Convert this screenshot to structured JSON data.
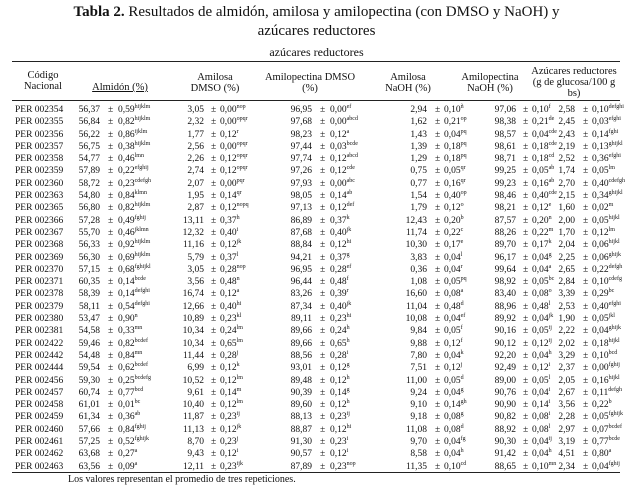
{
  "table": {
    "title_bold": "Tabla 2.",
    "title_rest": " Resultados de almidón, amilosa y amilopectina (con DMSO y NaOH) y",
    "title_line2": "azúcares reductores",
    "subtitle": "azúcares reductores",
    "headers": {
      "codigo_1": "Código",
      "codigo_2": "Nacional",
      "almidon": "Almidón (%)",
      "amilosa_dmso_1": "Amilosa",
      "amilosa_dmso_2": "DMSO (%)",
      "amilopectina_dmso_1": "Amilopectina DMSO",
      "amilopectina_dmso_2": "(%)",
      "amilosa_naoh_1": "Amilosa",
      "amilosa_naoh_2": "NaOH (%)",
      "amilopectina_naoh_1": "Amilopectina",
      "amilopectina_naoh_2": "NaOH (%)",
      "azucares_1": "Azúcares reductores",
      "azucares_2": "(g de glucosa/100 g",
      "azucares_3": "bs)"
    },
    "pm": "±",
    "rows": [
      {
        "code": "PER 002354",
        "alm": "56,37",
        "alm_sd": "0,59",
        "alm_sup": "hijklm",
        "ad": "3,05",
        "ad_sd": "0,00",
        "ad_sup": "nop",
        "apd": "96,95",
        "apd_sd": "0,00",
        "apd_sup": "ef",
        "an": "2,94",
        "an_sd": "0,10",
        "an_sup": "ñ",
        "apn": "97,06",
        "apn_sd": "0,10",
        "apn_sup": "f",
        "az": "2,58",
        "az_sd": "0,10",
        "az_sup": "defghi"
      },
      {
        "code": "PER 002355",
        "alm": "56,84",
        "alm_sd": "0,82",
        "alm_sup": "hijklm",
        "ad": "2,32",
        "ad_sd": "0,00",
        "ad_sup": "opqr",
        "apd": "97,68",
        "apd_sd": "0,00",
        "apd_sup": "abcd",
        "an": "1,62",
        "an_sd": "0,21",
        "an_sup": "op",
        "apn": "98,38",
        "apn_sd": "0,21",
        "apn_sup": "de",
        "az": "2,45",
        "az_sd": "0,03",
        "az_sup": "efghi"
      },
      {
        "code": "PER 002356",
        "alm": "56,22",
        "alm_sd": "0,86",
        "alm_sup": "ijklm",
        "ad": "1,77",
        "ad_sd": "0,12",
        "ad_sup": "r",
        "apd": "98,23",
        "apd_sd": "0,12",
        "apd_sup": "a",
        "an": "1,43",
        "an_sd": "0,04",
        "an_sup": "pq",
        "apn": "98,57",
        "apn_sd": "0,04",
        "apn_sup": "cde",
        "az": "2,43",
        "az_sd": "0,14",
        "az_sup": "fghi"
      },
      {
        "code": "PER 002357",
        "alm": "56,75",
        "alm_sd": "0,38",
        "alm_sup": "hijklm",
        "ad": "2,56",
        "ad_sd": "0,00",
        "ad_sup": "opqr",
        "apd": "97,44",
        "apd_sd": "0,03",
        "apd_sup": "bcde",
        "an": "1,39",
        "an_sd": "0,18",
        "an_sup": "pq",
        "apn": "98,61",
        "apn_sd": "0,18",
        "apn_sup": "cde",
        "az": "2,19",
        "az_sd": "0,13",
        "az_sup": "ghijkl"
      },
      {
        "code": "PER 002358",
        "alm": "54,77",
        "alm_sd": "0,46",
        "alm_sup": "lmn",
        "ad": "2,26",
        "ad_sd": "0,12",
        "ad_sup": "opqr",
        "apd": "97,74",
        "apd_sd": "0,12",
        "apd_sup": "abcd",
        "an": "1,29",
        "an_sd": "0,18",
        "an_sup": "pq",
        "apn": "98,71",
        "apn_sd": "0,18",
        "apn_sup": "cd",
        "az": "2,52",
        "az_sd": "0,36",
        "az_sup": "efghi"
      },
      {
        "code": "PER 002359",
        "alm": "57,89",
        "alm_sd": "0,22",
        "alm_sup": "efghij",
        "ad": "2,74",
        "ad_sd": "0,12",
        "ad_sup": "opqr",
        "apd": "97,26",
        "apd_sd": "0,12",
        "apd_sup": "cde",
        "an": "0,75",
        "an_sd": "0,05",
        "an_sup": "qr",
        "apn": "99,25",
        "apn_sd": "0,05",
        "apn_sup": "ab",
        "az": "1,74",
        "az_sd": "0,05",
        "az_sup": "lm"
      },
      {
        "code": "PER 002360",
        "alm": "58,72",
        "alm_sd": "0,23",
        "alm_sup": "cdefgh",
        "ad": "2,07",
        "ad_sd": "0,00",
        "ad_sup": "pqr",
        "apd": "97,93",
        "apd_sd": "0,00",
        "apd_sup": "abc",
        "an": "0,77",
        "an_sd": "0,16",
        "an_sup": "qr",
        "apn": "99,23",
        "apn_sd": "0,16",
        "apn_sup": "ab",
        "az": "2,70",
        "az_sd": "0,40",
        "az_sup": "cdefgh"
      },
      {
        "code": "PER 002363",
        "alm": "54,80",
        "alm_sd": "0,84",
        "alm_sup": "klmn",
        "ad": "1,95",
        "ad_sd": "0,14",
        "ad_sup": "qr",
        "apd": "98,05",
        "apd_sd": "0,14",
        "apd_sup": "ab",
        "an": "1,54",
        "an_sd": "0,40",
        "an_sup": "op",
        "apn": "98,46",
        "apn_sd": "0,40",
        "apn_sup": "cde",
        "az": "2,15",
        "az_sd": "0,34",
        "az_sup": "ghijkl"
      },
      {
        "code": "PER 002365",
        "alm": "56,80",
        "alm_sd": "0,82",
        "alm_sup": "hijklm",
        "ad": "2,87",
        "ad_sd": "0,12",
        "ad_sup": "nopq",
        "apd": "97,13",
        "apd_sd": "0,12",
        "apd_sup": "def",
        "an": "1,79",
        "an_sd": "0,12",
        "an_sup": "o",
        "apn": "98,21",
        "apn_sd": "0,12",
        "apn_sup": "e",
        "az": "1,60",
        "az_sd": "0,02",
        "az_sup": "m"
      },
      {
        "code": "PER 002366",
        "alm": "57,28",
        "alm_sd": "0,49",
        "alm_sup": "fghij",
        "ad": "13,11",
        "ad_sd": "0,37",
        "ad_sup": "h",
        "apd": "86,89",
        "apd_sd": "0,37",
        "apd_sup": "k",
        "an": "12,43",
        "an_sd": "0,20",
        "an_sup": "b",
        "apn": "87,57",
        "apn_sd": "0,20",
        "apn_sup": "n",
        "az": "2,00",
        "az_sd": "0,05",
        "az_sup": "hijkl"
      },
      {
        "code": "PER 002367",
        "alm": "55,70",
        "alm_sd": "0,46",
        "alm_sup": "jklmn",
        "ad": "12,32",
        "ad_sd": "0,40",
        "ad_sup": "i",
        "apd": "87,68",
        "apd_sd": "0,40",
        "apd_sup": "jk",
        "an": "11,74",
        "an_sd": "0,22",
        "an_sup": "c",
        "apn": "88,26",
        "apn_sd": "0,22",
        "apn_sup": "m",
        "az": "1,70",
        "az_sd": "0,12",
        "az_sup": "lm"
      },
      {
        "code": "PER 002368",
        "alm": "56,33",
        "alm_sd": "0,92",
        "alm_sup": "hijklm",
        "ad": "11,16",
        "ad_sd": "0,12",
        "ad_sup": "jk",
        "apd": "88,84",
        "apd_sd": "0,12",
        "apd_sup": "hi",
        "an": "10,30",
        "an_sd": "0,17",
        "an_sup": "e",
        "apn": "89,70",
        "apn_sd": "0,17",
        "apn_sup": "k",
        "az": "2,04",
        "az_sd": "0,06",
        "az_sup": "hijkl"
      },
      {
        "code": "PER 002369",
        "alm": "56,30",
        "alm_sd": "0,69",
        "alm_sup": "hijklm",
        "ad": "5,79",
        "ad_sd": "0,37",
        "ad_sup": "l",
        "apd": "94,21",
        "apd_sd": "0,37",
        "apd_sup": "g",
        "an": "3,83",
        "an_sd": "0,04",
        "an_sup": "l",
        "apn": "96,17",
        "apn_sd": "0,04",
        "apn_sup": "g",
        "az": "2,25",
        "az_sd": "0,06",
        "az_sup": "ghijk"
      },
      {
        "code": "PER 002370",
        "alm": "57,15",
        "alm_sd": "0,68",
        "alm_sup": "fghijkl",
        "ad": "3,05",
        "ad_sd": "0,28",
        "ad_sup": "nop",
        "apd": "96,95",
        "apd_sd": "0,28",
        "apd_sup": "ef",
        "an": "0,36",
        "an_sd": "0,04",
        "an_sup": "r",
        "apn": "99,64",
        "apn_sd": "0,04",
        "apn_sup": "a",
        "az": "2,65",
        "az_sd": "0,22",
        "az_sup": "defgh"
      },
      {
        "code": "PER 002371",
        "alm": "60,35",
        "alm_sd": "0,14",
        "alm_sup": "bcde",
        "ad": "3,56",
        "ad_sd": "0,48",
        "ad_sup": "n",
        "apd": "96,44",
        "apd_sd": "0,48",
        "apd_sup": "f",
        "an": "1,08",
        "an_sd": "0,05",
        "an_sup": "pq",
        "apn": "98,92",
        "apn_sd": "0,05",
        "apn_sup": "bc",
        "az": "2,84",
        "az_sd": "0,10",
        "az_sup": "cdefg"
      },
      {
        "code": "PER 002378",
        "alm": "58,39",
        "alm_sd": "0,14",
        "alm_sup": "defghi",
        "ad": "16,74",
        "ad_sd": "0,12",
        "ad_sup": "a",
        "apd": "83,26",
        "apd_sd": "0,39",
        "apd_sup": "r",
        "an": "16,60",
        "an_sd": "0,08",
        "an_sup": "a",
        "apn": "83,40",
        "apn_sd": "0,08",
        "apn_sup": "o",
        "az": "3,39",
        "az_sd": "0,29",
        "az_sup": "bc"
      },
      {
        "code": "PER 002379",
        "alm": "58,11",
        "alm_sd": "0,54",
        "alm_sup": "defghi",
        "ad": "12,66",
        "ad_sd": "0,40",
        "ad_sup": "hi",
        "apd": "87,34",
        "apd_sd": "0,40",
        "apd_sup": "jk",
        "an": "11,04",
        "an_sd": "0,48",
        "an_sup": "d",
        "apn": "88,96",
        "apn_sd": "0,48",
        "apn_sup": "l",
        "az": "2,53",
        "az_sd": "0,40",
        "az_sup": "efghi"
      },
      {
        "code": "PER 002380",
        "alm": "53,47",
        "alm_sd": "0,90",
        "alm_sup": "n",
        "ad": "10,89",
        "ad_sd": "0,23",
        "ad_sup": "kl",
        "apd": "89,11",
        "apd_sd": "0,23",
        "apd_sup": "hi",
        "an": "10,08",
        "an_sd": "0,04",
        "an_sup": "ef",
        "apn": "89,92",
        "apn_sd": "0,04",
        "apn_sup": "jk",
        "az": "1,90",
        "az_sd": "0,05",
        "az_sup": "jkl"
      },
      {
        "code": "PER 002381",
        "alm": "54,58",
        "alm_sd": "0,33",
        "alm_sup": "mn",
        "ad": "10,34",
        "ad_sd": "0,24",
        "ad_sup": "lm",
        "apd": "89,66",
        "apd_sd": "0,24",
        "apd_sup": "h",
        "an": "9,84",
        "an_sd": "0,05",
        "an_sup": "f",
        "apn": "90,16",
        "apn_sd": "0,05",
        "apn_sup": "ij",
        "az": "2,22",
        "az_sd": "0,04",
        "az_sup": "ghijk"
      },
      {
        "code": "PER 002422",
        "alm": "59,46",
        "alm_sd": "0,82",
        "alm_sup": "bcdef",
        "ad": "10,34",
        "ad_sd": "0,65",
        "ad_sup": "lm",
        "apd": "89,66",
        "apd_sd": "0,65",
        "apd_sup": "h",
        "an": "9,88",
        "an_sd": "0,12",
        "an_sup": "f",
        "apn": "90,12",
        "apn_sd": "0,12",
        "apn_sup": "ij",
        "az": "2,02",
        "az_sd": "0,18",
        "az_sup": "hijkl"
      },
      {
        "code": "PER 002442",
        "alm": "54,48",
        "alm_sd": "0,84",
        "alm_sup": "mn",
        "ad": "11,44",
        "ad_sd": "0,28",
        "ad_sup": "j",
        "apd": "88,56",
        "apd_sd": "0,28",
        "apd_sup": "i",
        "an": "7,80",
        "an_sd": "0,04",
        "an_sup": "k",
        "apn": "92,20",
        "apn_sd": "0,04",
        "apn_sup": "h",
        "az": "3,29",
        "az_sd": "0,10",
        "az_sup": "bcd"
      },
      {
        "code": "PER 002444",
        "alm": "59,54",
        "alm_sd": "0,62",
        "alm_sup": "bcdef",
        "ad": "6,99",
        "ad_sd": "0,12",
        "ad_sup": "k",
        "apd": "93,01",
        "apd_sd": "0,12",
        "apd_sup": "g",
        "an": "7,51",
        "an_sd": "0,12",
        "an_sup": "j",
        "apn": "92,49",
        "apn_sd": "0,12",
        "apn_sup": "i",
        "az": "2,37",
        "az_sd": "0,00",
        "az_sup": "fghij"
      },
      {
        "code": "PER 002456",
        "alm": "59,30",
        "alm_sd": "0,25",
        "alm_sup": "bcdefg",
        "ad": "10,52",
        "ad_sd": "0,12",
        "ad_sup": "lm",
        "apd": "89,48",
        "apd_sd": "0,12",
        "apd_sup": "h",
        "an": "11,00",
        "an_sd": "0,05",
        "an_sup": "d",
        "apn": "89,00",
        "apn_sd": "0,05",
        "apn_sup": "l",
        "az": "2,05",
        "az_sd": "0,16",
        "az_sup": "hijkl"
      },
      {
        "code": "PER 002457",
        "alm": "60,74",
        "alm_sd": "0,77",
        "alm_sup": "bcd",
        "ad": "9,61",
        "ad_sd": "0,14",
        "ad_sup": "m",
        "apd": "90,39",
        "apd_sd": "0,14",
        "apd_sup": "g",
        "an": "9,24",
        "an_sd": "0,04",
        "an_sup": "g",
        "apn": "90,76",
        "apn_sd": "0,04",
        "apn_sup": "i",
        "az": "2,67",
        "az_sd": "0,11",
        "az_sup": "defgh"
      },
      {
        "code": "PER 002458",
        "alm": "61,01",
        "alm_sd": "0,01",
        "alm_sup": "bc",
        "ad": "10,40",
        "ad_sd": "0,12",
        "ad_sup": "lm",
        "apd": "89,60",
        "apd_sd": "0,12",
        "apd_sup": "h",
        "an": "9,10",
        "an_sd": "0,14",
        "an_sup": "gh",
        "apn": "90,90",
        "apn_sd": "0,14",
        "apn_sup": "i",
        "az": "3,56",
        "az_sd": "0,22",
        "az_sup": "b"
      },
      {
        "code": "PER 002459",
        "alm": "61,34",
        "alm_sd": "0,36",
        "alm_sup": "ab",
        "ad": "11,87",
        "ad_sd": "0,23",
        "ad_sup": "ij",
        "apd": "88,13",
        "apd_sd": "0,23",
        "apd_sup": "ij",
        "an": "9,18",
        "an_sd": "0,08",
        "an_sup": "g",
        "apn": "90,82",
        "apn_sd": "0,08",
        "apn_sup": "i",
        "az": "2,28",
        "az_sd": "0,05",
        "az_sup": "fghijk"
      },
      {
        "code": "PER 002460",
        "alm": "57,66",
        "alm_sd": "0,84",
        "alm_sup": "fghij",
        "ad": "11,13",
        "ad_sd": "0,12",
        "ad_sup": "jk",
        "apd": "88,87",
        "apd_sd": "0,12",
        "apd_sup": "hi",
        "an": "11,08",
        "an_sd": "0,08",
        "an_sup": "d",
        "apn": "88,92",
        "apn_sd": "0,08",
        "apn_sup": "l",
        "az": "2,97",
        "az_sd": "0,07",
        "az_sup": "bcdef"
      },
      {
        "code": "PER 002461",
        "alm": "57,25",
        "alm_sd": "0,52",
        "alm_sup": "fghijk",
        "ad": "8,70",
        "ad_sd": "0,23",
        "ad_sup": "j",
        "apd": "91,30",
        "apd_sd": "0,23",
        "apd_sup": "i",
        "an": "9,70",
        "an_sd": "0,04",
        "an_sup": "fg",
        "apn": "90,30",
        "apn_sd": "0,04",
        "apn_sup": "ij",
        "az": "3,19",
        "az_sd": "0,77",
        "az_sup": "bcde"
      },
      {
        "code": "PER 002462",
        "alm": "63,68",
        "alm_sd": "0,27",
        "alm_sup": "a",
        "ad": "9,43",
        "ad_sd": "0,12",
        "ad_sup": "i",
        "apd": "90,57",
        "apd_sd": "0,12",
        "apd_sup": "i",
        "an": "8,58",
        "an_sd": "0,04",
        "an_sup": "h",
        "apn": "91,42",
        "apn_sd": "0,04",
        "apn_sup": "h",
        "az": "4,51",
        "az_sd": "0,80",
        "az_sup": "a"
      },
      {
        "code": "PER 002463",
        "alm": "63,56",
        "alm_sd": "0,09",
        "alm_sup": "a",
        "ad": "12,11",
        "ad_sd": "0,23",
        "ad_sup": "ijk",
        "apd": "87,89",
        "apd_sd": "0,23",
        "apd_sup": "nop",
        "an": "11,35",
        "an_sd": "0,10",
        "an_sup": "cd",
        "apn": "88,65",
        "apn_sd": "0,10",
        "apn_sup": "mn",
        "az": "2,34",
        "az_sd": "0,04",
        "az_sup": "fghij"
      }
    ],
    "note": "Los valores representan el promedio de tres repeticiones."
  }
}
